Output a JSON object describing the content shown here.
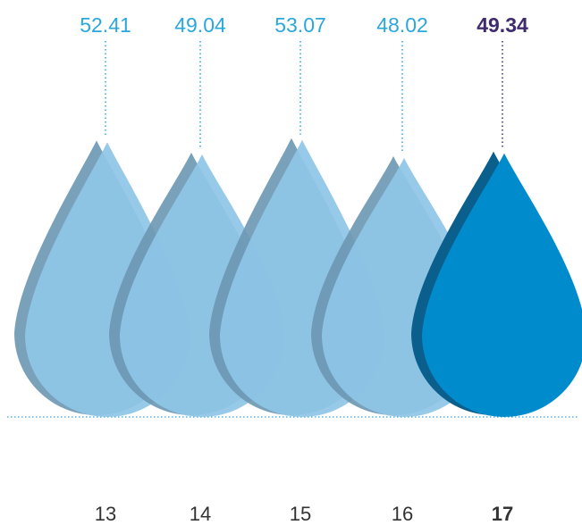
{
  "chart_data": {
    "type": "bar",
    "title": "",
    "xlabel": "",
    "ylabel": "",
    "categories": [
      "13",
      "14",
      "15",
      "16",
      "17"
    ],
    "values": [
      52.41,
      49.04,
      53.07,
      48.02,
      49.34
    ],
    "value_labels": [
      "52.41",
      "49.04",
      "53.07",
      "48.02",
      "49.34"
    ],
    "highlight_index": 4,
    "ylim": [
      0,
      60
    ],
    "grid": false,
    "legend": "none",
    "colors": {
      "value_text": "#2aa7dc",
      "highlight_text": "#3f2b6e",
      "drop_light": "#8ec6e6",
      "drop_light_edge": "#6b97b3",
      "drop_highlight": "#008ccc",
      "drop_highlight_edge": "#0a5f8c",
      "baseline": "#2aa7dc",
      "leader_light": "#2aa7dc",
      "leader_highlight": "#3f2b6e",
      "year_text": "#333333"
    }
  }
}
